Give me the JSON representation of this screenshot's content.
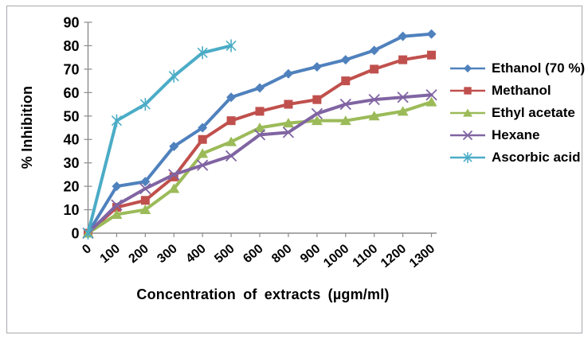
{
  "chart_data": {
    "type": "line",
    "categories": [
      "0",
      "100",
      "200",
      "300",
      "400",
      "500",
      "600",
      "800",
      "900",
      "1000",
      "1100",
      "1200",
      "1300"
    ],
    "series": [
      {
        "name": "Ethanol (70 %)",
        "color": "#4F81BD",
        "marker": "diamond",
        "values": [
          0,
          20,
          22,
          37,
          45,
          58,
          62,
          68,
          71,
          74,
          78,
          84,
          85
        ]
      },
      {
        "name": "Methanol",
        "color": "#C0504D",
        "marker": "square",
        "values": [
          0,
          11,
          14,
          24,
          40,
          48,
          52,
          55,
          57,
          65,
          70,
          74,
          76
        ]
      },
      {
        "name": "Ethyl acetate",
        "color": "#9BBB59",
        "marker": "triangle",
        "values": [
          0,
          8,
          10,
          19,
          34,
          39,
          45,
          47,
          48,
          48,
          50,
          52,
          56
        ]
      },
      {
        "name": "Hexane",
        "color": "#8064A2",
        "marker": "x",
        "values": [
          0,
          12,
          19,
          25,
          29,
          33,
          42,
          43,
          51,
          55,
          57,
          58,
          59
        ]
      },
      {
        "name": "Ascorbic acid",
        "color": "#4BACC6",
        "marker": "asterisk",
        "values": [
          0,
          48,
          55,
          67,
          77,
          80
        ]
      }
    ],
    "title": "",
    "xlabel": "Concentration of extracts (µgm/ml)",
    "ylabel": "% Inhibition",
    "ylim": [
      0,
      90
    ],
    "ytick_step": 10,
    "grid": false,
    "legend_position": "right",
    "axis_color": "#8C8C8C"
  }
}
